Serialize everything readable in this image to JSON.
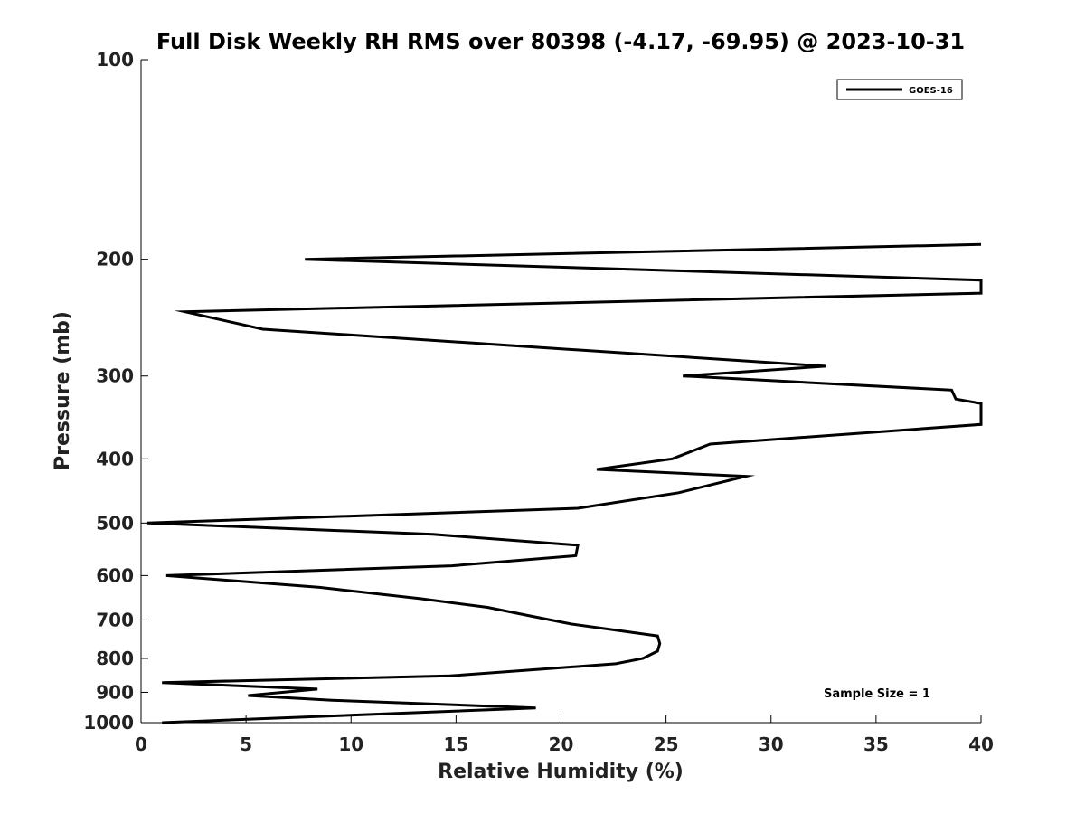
{
  "chart_data": {
    "type": "line",
    "title": "Full Disk Weekly RH RMS over 80398 (-4.17, -69.95) @ 2023-10-31",
    "xlabel": "Relative Humidity (%)",
    "ylabel": "Pressure (mb)",
    "xlim": [
      0,
      40
    ],
    "ylim": [
      100,
      1000
    ],
    "y_scale": "log",
    "y_reversed": true,
    "x_ticks": [
      0,
      5,
      10,
      15,
      20,
      25,
      30,
      35,
      40
    ],
    "y_ticks": [
      100,
      200,
      300,
      400,
      500,
      600,
      700,
      800,
      900,
      1000
    ],
    "grid": false,
    "legend_position": "top-right",
    "annotation": "Sample Size = 1",
    "series": [
      {
        "name": "GOES-16",
        "color": "#000000",
        "x": [
          40,
          7.8,
          40,
          40,
          2.1,
          5.8,
          32.6,
          25.8,
          38.6,
          38.8,
          40,
          40,
          27.1,
          25.3,
          21.7,
          28.8,
          25.6,
          20.8,
          0.3,
          13.9,
          20.8,
          20.7,
          14.8,
          1.2,
          8.5,
          13.3,
          16.5,
          18.5,
          20.5,
          24.6,
          24.7,
          24.6,
          23.9,
          22.6,
          14.7,
          1.0,
          8.4,
          5.1,
          9.1,
          18.8,
          1.0
        ],
        "y": [
          190,
          200,
          215,
          225,
          240,
          255,
          290,
          300,
          315,
          325,
          330,
          355,
          380,
          400,
          415,
          425,
          450,
          475,
          500,
          520,
          540,
          560,
          580,
          600,
          625,
          650,
          670,
          690,
          710,
          740,
          760,
          780,
          800,
          815,
          850,
          870,
          890,
          910,
          925,
          950,
          1000
        ]
      }
    ]
  }
}
